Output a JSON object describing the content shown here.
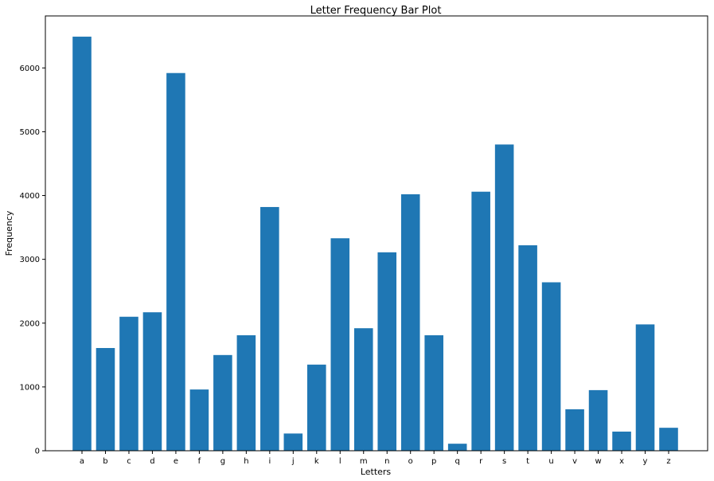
{
  "chart_data": {
    "type": "bar",
    "title": "Letter Frequency Bar Plot",
    "xlabel": "Letters",
    "ylabel": "Frequency",
    "categories": [
      "a",
      "b",
      "c",
      "d",
      "e",
      "f",
      "g",
      "h",
      "i",
      "j",
      "k",
      "l",
      "m",
      "n",
      "o",
      "p",
      "q",
      "r",
      "s",
      "t",
      "u",
      "v",
      "w",
      "x",
      "y",
      "z"
    ],
    "values": [
      6490,
      1610,
      2100,
      2170,
      5920,
      960,
      1500,
      1810,
      3820,
      270,
      1350,
      3330,
      1920,
      3110,
      4020,
      1810,
      110,
      4060,
      4800,
      3220,
      2640,
      650,
      950,
      300,
      1980,
      360
    ],
    "yticks": [
      0,
      1000,
      2000,
      3000,
      4000,
      5000,
      6000
    ],
    "ylim": [
      0,
      6815
    ],
    "grid": false,
    "color": "#1f77b4"
  }
}
